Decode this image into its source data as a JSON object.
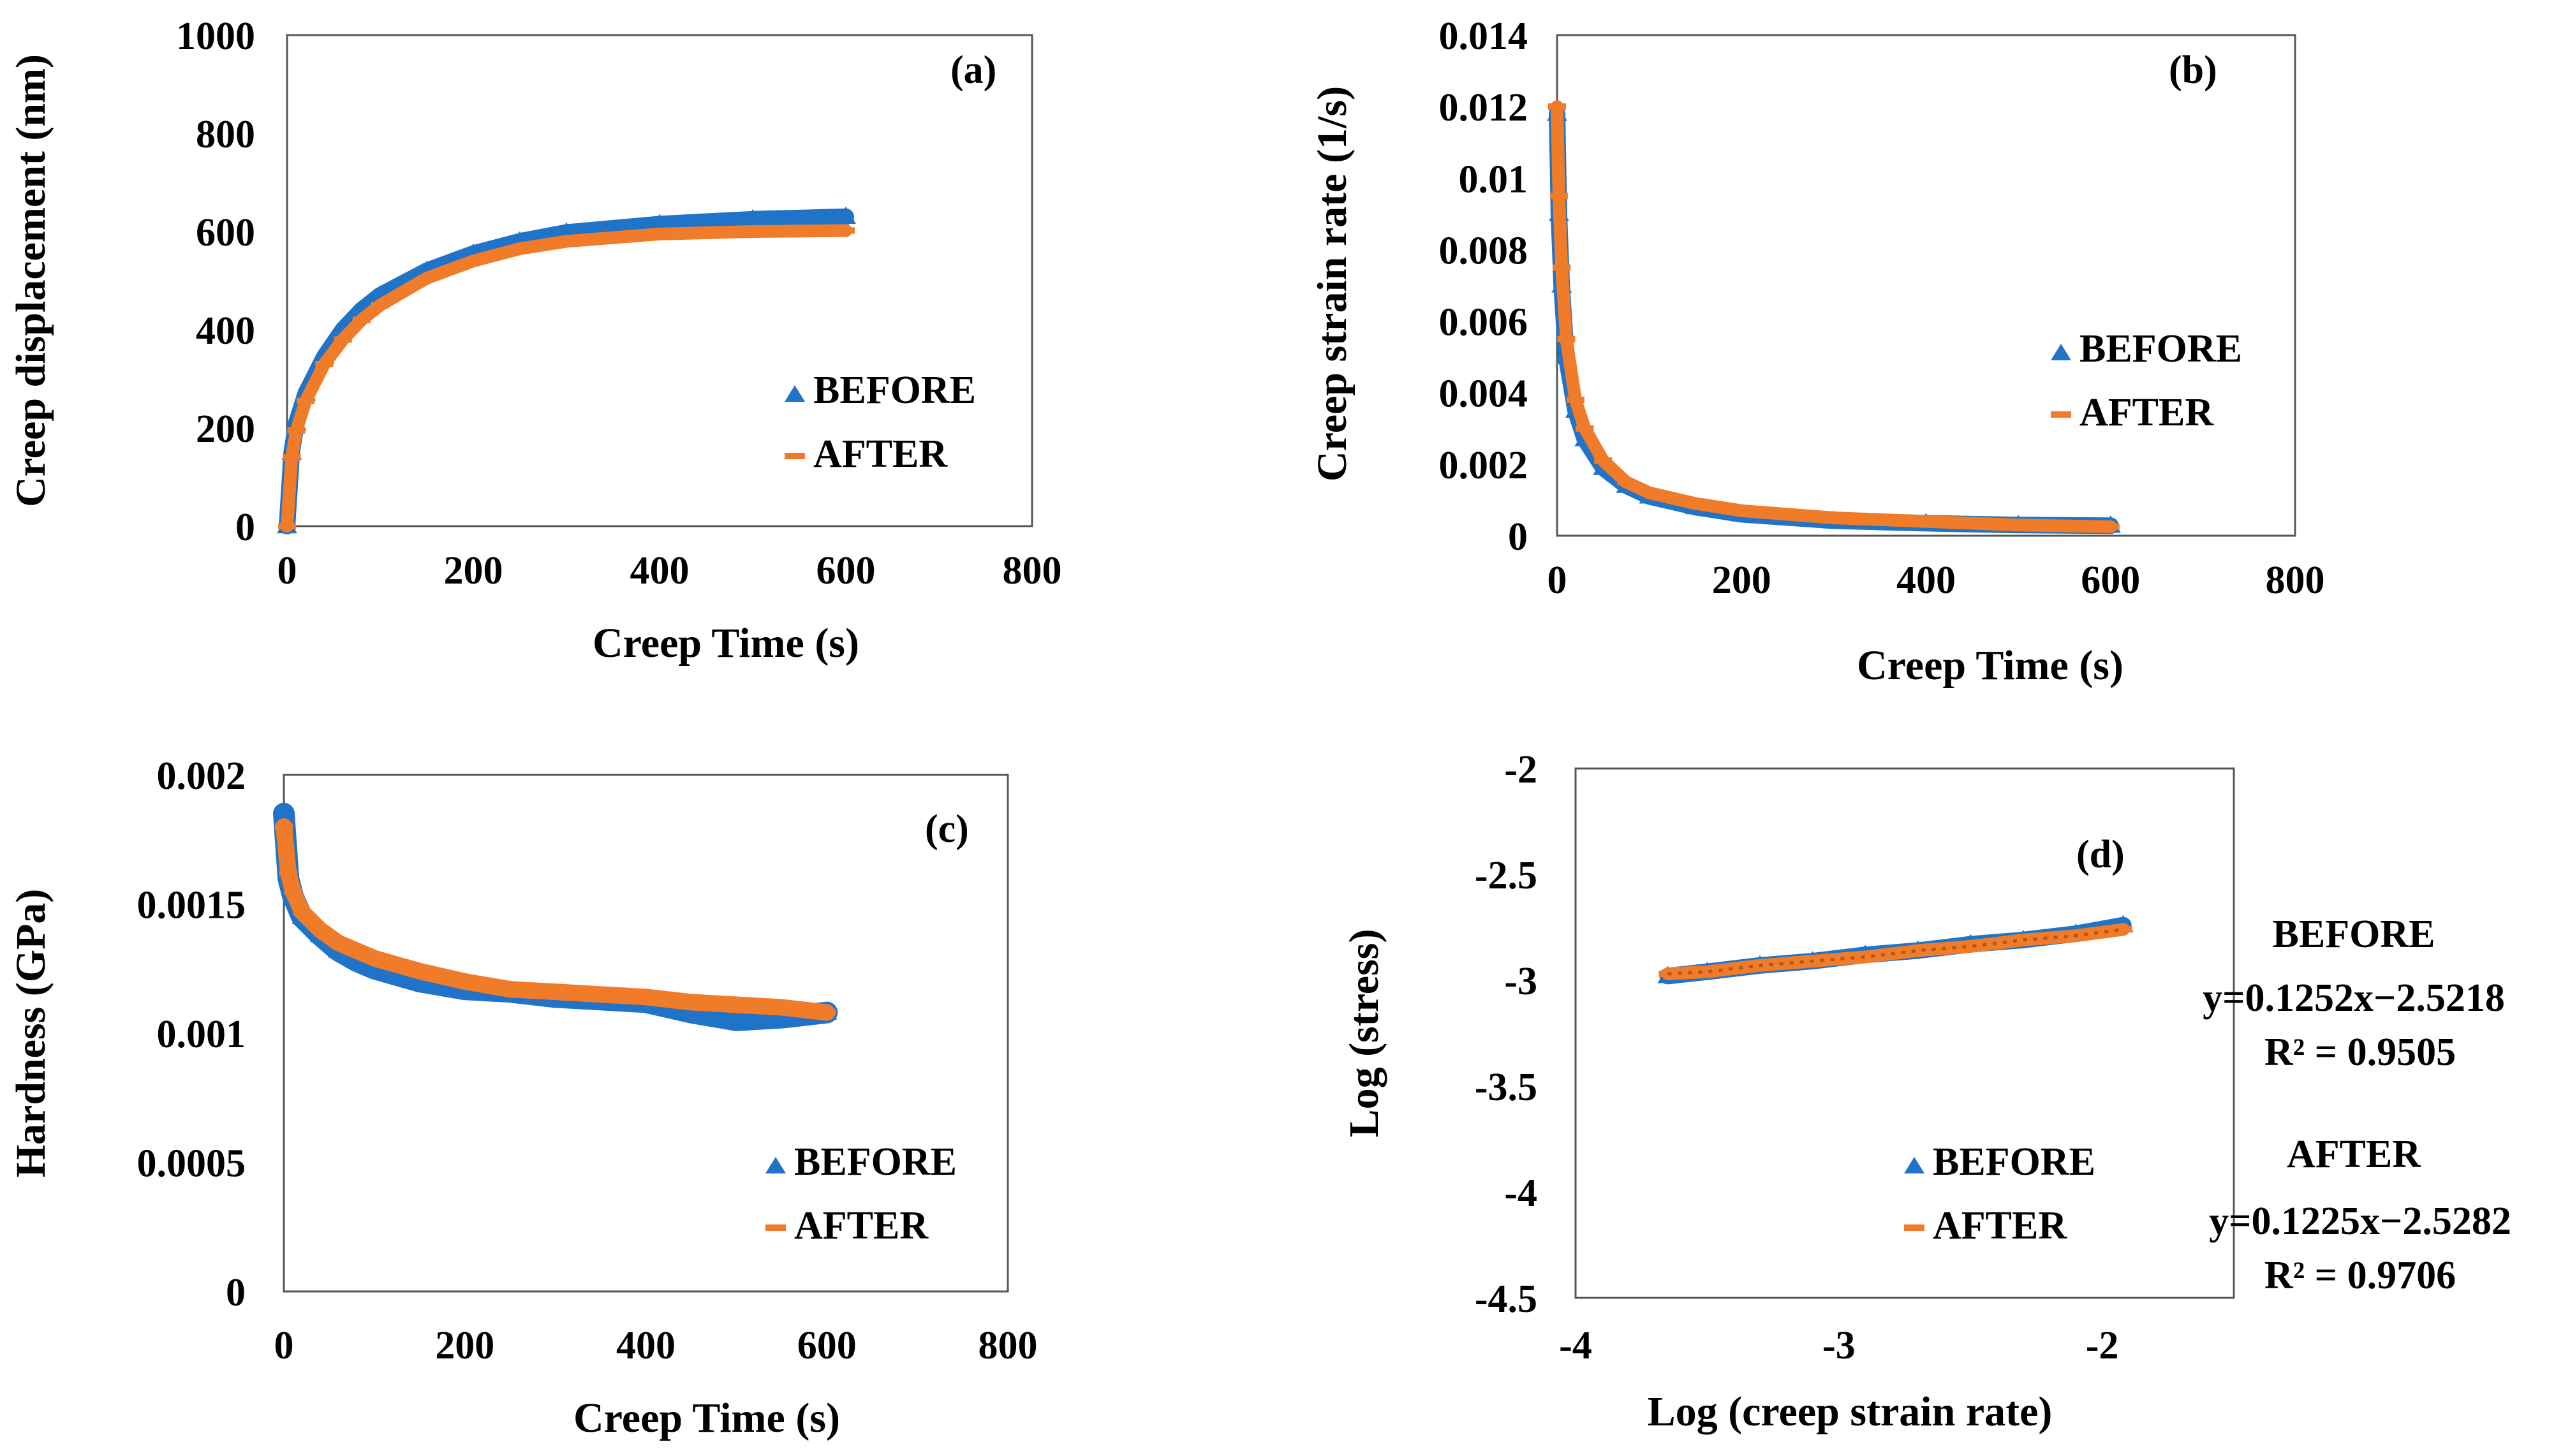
{
  "colors": {
    "before": "#1f73c8",
    "after": "#f07b28",
    "axis": "#000000",
    "frame": "#555555"
  },
  "chart_data": [
    {
      "type": "scatter",
      "panel_label": "(a)",
      "xlabel": "Creep Time (s)",
      "ylabel": "Creep displacement (nm)",
      "xlim": [
        0,
        800
      ],
      "ylim": [
        0,
        1000
      ],
      "xticks": [
        0,
        200,
        400,
        600,
        800
      ],
      "yticks": [
        0,
        200,
        400,
        600,
        800,
        1000
      ],
      "xtick_labels": [
        "0",
        "200",
        "400",
        "600",
        "800"
      ],
      "ytick_labels": [
        "0",
        "200",
        "400",
        "600",
        "800",
        "1000"
      ],
      "legend": [
        "BEFORE",
        "AFTER"
      ],
      "series": [
        {
          "name": "BEFORE",
          "x": [
            0,
            5,
            10,
            20,
            40,
            60,
            80,
            100,
            150,
            200,
            250,
            300,
            400,
            500,
            600
          ],
          "y": [
            0,
            150,
            210,
            270,
            345,
            400,
            440,
            470,
            520,
            555,
            580,
            598,
            615,
            625,
            630
          ]
        },
        {
          "name": "AFTER",
          "x": [
            0,
            5,
            10,
            20,
            40,
            60,
            80,
            100,
            150,
            200,
            250,
            300,
            400,
            500,
            600
          ],
          "y": [
            0,
            140,
            195,
            255,
            330,
            380,
            420,
            450,
            505,
            540,
            565,
            580,
            595,
            600,
            602
          ]
        }
      ]
    },
    {
      "type": "scatter",
      "panel_label": "(b)",
      "xlabel": "Creep Time (s)",
      "ylabel": "Creep strain rate (1/s)",
      "xlim": [
        0,
        800
      ],
      "ylim": [
        0,
        0.014
      ],
      "xticks": [
        0,
        200,
        400,
        600,
        800
      ],
      "yticks": [
        0,
        0.002,
        0.004,
        0.006,
        0.008,
        0.01,
        0.012,
        0.014
      ],
      "xtick_labels": [
        "0",
        "200",
        "400",
        "600",
        "800"
      ],
      "ytick_labels": [
        "0",
        "0.002",
        "0.004",
        "0.006",
        "0.008",
        "0.01",
        "0.012",
        "0.014"
      ],
      "legend": [
        "BEFORE",
        "AFTER"
      ],
      "series": [
        {
          "name": "BEFORE",
          "x": [
            0,
            2,
            5,
            10,
            20,
            30,
            50,
            75,
            100,
            150,
            200,
            300,
            400,
            500,
            600
          ],
          "y": [
            0.0118,
            0.009,
            0.007,
            0.005,
            0.0035,
            0.0027,
            0.0019,
            0.0014,
            0.0011,
            0.0008,
            0.0006,
            0.00042,
            0.00035,
            0.0003,
            0.00028
          ]
        },
        {
          "name": "AFTER",
          "x": [
            0,
            2,
            5,
            10,
            20,
            30,
            50,
            75,
            100,
            150,
            200,
            300,
            400,
            500,
            600
          ],
          "y": [
            0.012,
            0.0095,
            0.0075,
            0.0055,
            0.0038,
            0.003,
            0.0021,
            0.0015,
            0.0012,
            0.0009,
            0.0007,
            0.0005,
            0.0004,
            0.0003,
            0.00025
          ]
        }
      ]
    },
    {
      "type": "scatter",
      "panel_label": "(c)",
      "xlabel": "Creep Time (s)",
      "ylabel": "Hardness (GPa)",
      "xlim": [
        0,
        800
      ],
      "ylim": [
        0,
        0.002
      ],
      "xticks": [
        0,
        200,
        400,
        600,
        800
      ],
      "yticks": [
        0,
        0.0005,
        0.001,
        0.0015,
        0.002
      ],
      "xtick_labels": [
        "0",
        "200",
        "400",
        "600",
        "800"
      ],
      "ytick_labels": [
        "0",
        "0.0005",
        "0.001",
        "0.0015",
        "0.002"
      ],
      "legend": [
        "BEFORE",
        "AFTER"
      ],
      "series": [
        {
          "name": "BEFORE",
          "x": [
            0,
            5,
            10,
            20,
            40,
            60,
            80,
            100,
            150,
            200,
            250,
            300,
            350,
            400,
            450,
            500,
            550,
            600
          ],
          "y": [
            0.00185,
            0.0016,
            0.00153,
            0.00145,
            0.00138,
            0.00132,
            0.00128,
            0.00125,
            0.0012,
            0.00117,
            0.00116,
            0.00114,
            0.00113,
            0.00112,
            0.00108,
            0.00105,
            0.00106,
            0.00108
          ]
        },
        {
          "name": "AFTER",
          "x": [
            0,
            5,
            10,
            20,
            40,
            60,
            80,
            100,
            150,
            200,
            250,
            300,
            350,
            400,
            450,
            500,
            550,
            600
          ],
          "y": [
            0.0018,
            0.00162,
            0.00155,
            0.00147,
            0.0014,
            0.00135,
            0.00132,
            0.00129,
            0.00124,
            0.0012,
            0.00117,
            0.00116,
            0.00115,
            0.00114,
            0.00112,
            0.00111,
            0.0011,
            0.00108
          ]
        }
      ]
    },
    {
      "type": "scatter",
      "panel_label": "(d)",
      "xlabel": "Log (creep strain rate)",
      "ylabel": "Log (stress)",
      "xlim": [
        -4,
        -1.5
      ],
      "ylim": [
        -4.5,
        -2
      ],
      "xticks": [
        -4,
        -3,
        -2
      ],
      "yticks": [
        -4.5,
        -4,
        -3.5,
        -3,
        -2.5,
        -2
      ],
      "xtick_labels": [
        "-4",
        "-3",
        "-2"
      ],
      "ytick_labels": [
        "-4.5",
        "-4",
        "-3.5",
        "-3",
        "-2.5",
        "-2"
      ],
      "legend": [
        "BEFORE",
        "AFTER"
      ],
      "series": [
        {
          "name": "BEFORE",
          "x": [
            -3.65,
            -3.5,
            -3.3,
            -3.1,
            -2.9,
            -2.7,
            -2.5,
            -2.3,
            -2.1,
            -1.92
          ],
          "y": [
            -2.98,
            -2.96,
            -2.93,
            -2.91,
            -2.88,
            -2.86,
            -2.83,
            -2.81,
            -2.78,
            -2.74
          ]
        },
        {
          "name": "AFTER",
          "x": [
            -3.65,
            -3.5,
            -3.3,
            -3.1,
            -2.9,
            -2.7,
            -2.5,
            -2.3,
            -2.1,
            -1.92
          ],
          "y": [
            -2.97,
            -2.96,
            -2.93,
            -2.91,
            -2.89,
            -2.86,
            -2.84,
            -2.81,
            -2.79,
            -2.76
          ]
        }
      ],
      "annotations": [
        {
          "label": "BEFORE",
          "equation": "y=0.1252x−2.5218",
          "r2": "R² = 0.9505"
        },
        {
          "label": "AFTER",
          "equation": "y=0.1225x−2.5282",
          "r2": "R² = 0.9706"
        }
      ]
    }
  ]
}
